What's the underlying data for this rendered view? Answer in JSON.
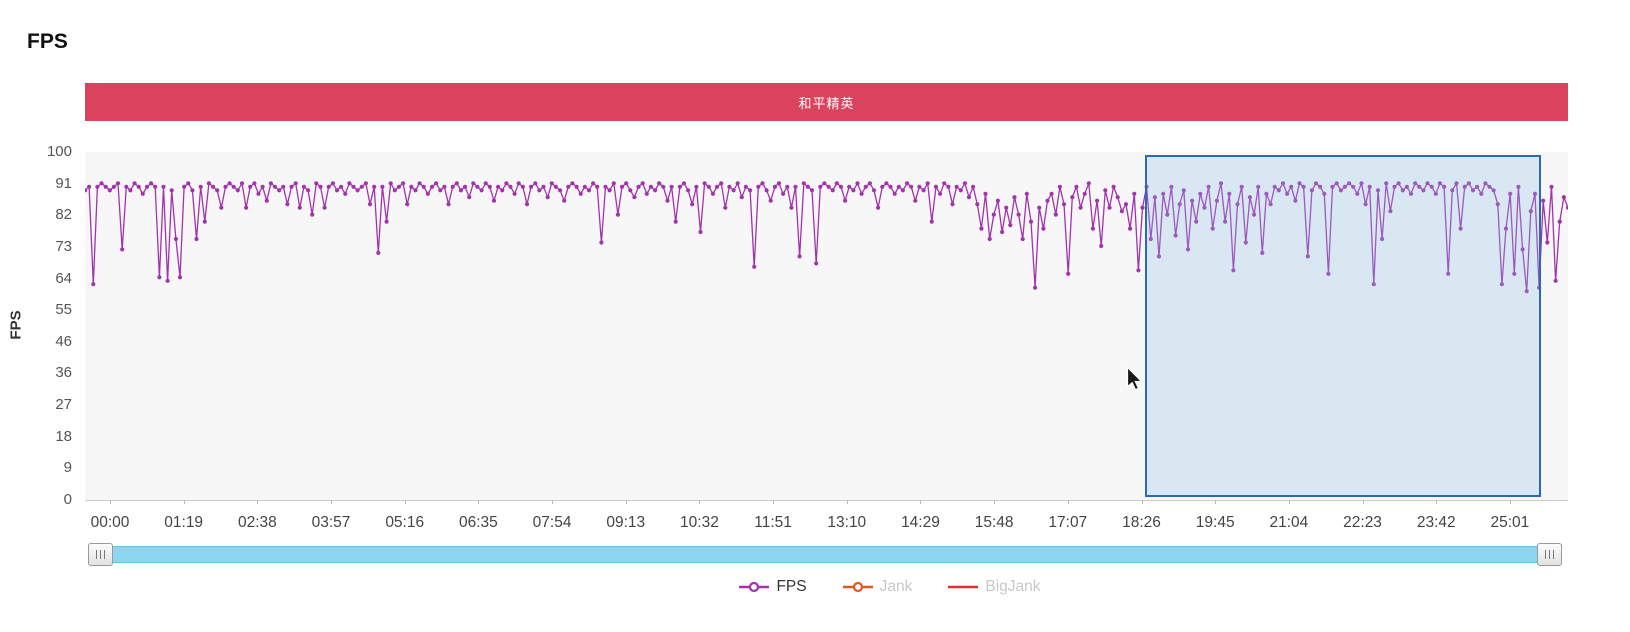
{
  "page": {
    "title": "FPS"
  },
  "banner": {
    "label": "和平精英",
    "color": "#d9435e"
  },
  "chart_data": {
    "type": "line",
    "title": "和平精英",
    "ylabel": "FPS",
    "xlabel": "",
    "ylim": [
      0,
      100
    ],
    "grid": false,
    "legend_position": "bottom",
    "y_ticks": [
      100,
      91,
      82,
      73,
      64,
      55,
      46,
      36,
      27,
      18,
      9,
      0
    ],
    "x_ticks": [
      "00:00",
      "01:19",
      "02:38",
      "03:57",
      "05:16",
      "06:35",
      "07:54",
      "09:13",
      "10:32",
      "11:51",
      "13:10",
      "14:29",
      "15:48",
      "17:07",
      "18:26",
      "19:45",
      "21:04",
      "22:23",
      "23:42",
      "25:01"
    ],
    "series": [
      {
        "name": "FPS",
        "color": "#a233ad",
        "values": [
          89,
          90,
          62,
          90,
          91,
          90,
          89,
          90,
          91,
          72,
          90,
          89,
          91,
          90,
          88,
          90,
          91,
          90,
          64,
          90,
          63,
          89,
          75,
          64,
          90,
          91,
          89,
          75,
          90,
          80,
          91,
          90,
          89,
          84,
          90,
          91,
          90,
          89,
          91,
          84,
          90,
          91,
          88,
          90,
          86,
          91,
          90,
          89,
          90,
          85,
          90,
          91,
          84,
          90,
          89,
          82,
          91,
          90,
          84,
          90,
          91,
          89,
          90,
          88,
          91,
          90,
          89,
          90,
          91,
          85,
          90,
          71,
          90,
          80,
          91,
          89,
          90,
          91,
          85,
          90,
          89,
          91,
          90,
          88,
          90,
          91,
          89,
          90,
          85,
          90,
          91,
          89,
          90,
          87,
          91,
          90,
          89,
          91,
          90,
          86,
          90,
          89,
          91,
          90,
          88,
          91,
          90,
          85,
          90,
          91,
          89,
          90,
          87,
          91,
          90,
          89,
          86,
          90,
          91,
          90,
          88,
          90,
          89,
          91,
          90,
          74,
          90,
          89,
          91,
          82,
          90,
          91,
          89,
          87,
          90,
          91,
          88,
          90,
          89,
          91,
          90,
          86,
          90,
          80,
          90,
          91,
          89,
          85,
          90,
          77,
          91,
          90,
          88,
          90,
          91,
          84,
          90,
          89,
          91,
          87,
          90,
          89,
          67,
          90,
          91,
          89,
          86,
          90,
          91,
          88,
          90,
          84,
          90,
          70,
          91,
          90,
          89,
          68,
          90,
          91,
          90,
          89,
          91,
          90,
          86,
          90,
          89,
          91,
          88,
          90,
          91,
          89,
          84,
          90,
          91,
          90,
          88,
          90,
          89,
          91,
          90,
          86,
          90,
          89,
          91,
          80,
          90,
          88,
          91,
          90,
          85,
          90,
          89,
          91,
          87,
          90,
          85,
          78,
          88,
          75,
          82,
          86,
          77,
          84,
          79,
          87,
          82,
          75,
          88,
          80,
          61,
          84,
          78,
          86,
          88,
          82,
          90,
          85,
          65,
          87,
          90,
          84,
          88,
          91,
          78,
          86,
          73,
          89,
          84,
          90,
          87,
          83,
          85,
          78,
          88,
          66,
          84,
          90,
          75,
          87,
          70,
          88,
          82,
          90,
          76,
          85,
          89,
          72,
          86,
          80,
          88,
          84,
          90,
          78,
          86,
          91,
          80,
          88,
          66,
          85,
          90,
          74,
          87,
          82,
          90,
          71,
          88,
          85,
          90,
          89,
          91,
          88,
          90,
          86,
          91,
          90,
          70,
          89,
          91,
          90,
          88,
          65,
          90,
          91,
          89,
          90,
          91,
          90,
          88,
          91,
          85,
          90,
          62,
          89,
          75,
          91,
          83,
          90,
          91,
          89,
          90,
          88,
          91,
          90,
          89,
          91,
          90,
          88,
          91,
          90,
          65,
          89,
          91,
          78,
          90,
          91,
          89,
          90,
          88,
          91,
          90,
          89,
          85,
          62,
          78,
          88,
          65,
          90,
          72,
          60,
          83,
          88,
          61,
          86,
          74,
          90,
          63,
          80,
          87,
          84
        ]
      }
    ],
    "legend": [
      {
        "label": "FPS",
        "color": "#a233ad",
        "marker": "line-dot",
        "active": true
      },
      {
        "label": "Jank",
        "color": "#e2571f",
        "marker": "line-dot",
        "active": false
      },
      {
        "label": "BigJank",
        "color": "#e03131",
        "marker": "line",
        "active": false
      }
    ]
  }
}
